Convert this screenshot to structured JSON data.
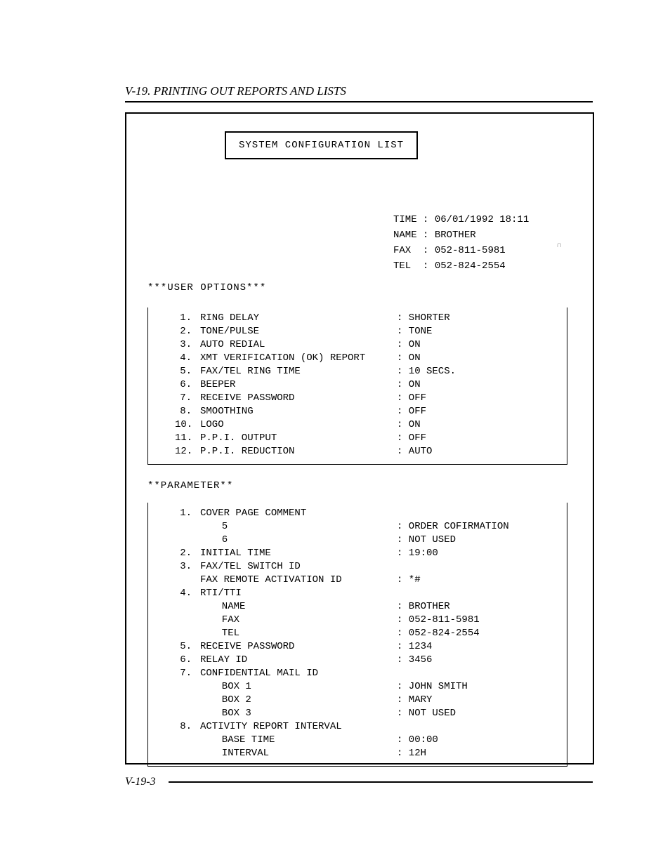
{
  "header": {
    "title": "V-19. PRINTING OUT REPORTS AND LISTS"
  },
  "report": {
    "title": "SYSTEM CONFIGURATION LIST",
    "meta": {
      "time_label": "TIME",
      "time_value": "06/01/1992 18:11",
      "name_label": "NAME",
      "name_value": "BROTHER",
      "fax_label": "FAX ",
      "fax_value": "052-811-5981",
      "tel_label": "TEL ",
      "tel_value": "052-824-2554"
    },
    "user_options": {
      "title": "***USER OPTIONS***",
      "rows": [
        {
          "num": "1.",
          "label": "RING DELAY",
          "value": ": SHORTER"
        },
        {
          "num": "2.",
          "label": "TONE/PULSE",
          "value": ": TONE"
        },
        {
          "num": "3.",
          "label": "AUTO REDIAL",
          "value": ": ON"
        },
        {
          "num": "4.",
          "label": "XMT VERIFICATION (OK) REPORT",
          "value": ": ON"
        },
        {
          "num": "5.",
          "label": "FAX/TEL RING TIME",
          "value": ": 10 SECS."
        },
        {
          "num": "6.",
          "label": "BEEPER",
          "value": ": ON"
        },
        {
          "num": "7.",
          "label": "RECEIVE PASSWORD",
          "value": ": OFF"
        },
        {
          "num": "8.",
          "label": "SMOOTHING",
          "value": ": OFF"
        },
        {
          "num": "10.",
          "label": "LOGO",
          "value": ": ON"
        },
        {
          "num": "11.",
          "label": "P.P.I. OUTPUT",
          "value": ": OFF"
        },
        {
          "num": "12.",
          "label": "P.P.I. REDUCTION",
          "value": ": AUTO"
        }
      ]
    },
    "parameter": {
      "title": "**PARAMETER**",
      "rows": [
        {
          "num": "1.",
          "label": "COVER PAGE COMMENT",
          "value": ""
        },
        {
          "sub": "  5",
          "value": ": ORDER COFIRMATION"
        },
        {
          "sub": "  6",
          "value": ": NOT USED"
        },
        {
          "num": "2.",
          "label": "INITIAL TIME",
          "value": ": 19:00"
        },
        {
          "num": "3.",
          "label": "FAX/TEL SWITCH ID",
          "value": ""
        },
        {
          "num": "",
          "label": "FAX REMOTE ACTIVATION ID",
          "value": ": *#"
        },
        {
          "num": "4.",
          "label": "RTI/TTI",
          "value": ""
        },
        {
          "sub": "  NAME",
          "value": ": BROTHER"
        },
        {
          "sub": "  FAX",
          "value": ": 052-811-5981"
        },
        {
          "sub": "  TEL",
          "value": ": 052-824-2554"
        },
        {
          "num": "5.",
          "label": "RECEIVE PASSWORD",
          "value": ": 1234"
        },
        {
          "num": "6.",
          "label": "RELAY ID",
          "value": ": 3456"
        },
        {
          "num": "7.",
          "label": "CONFIDENTIAL MAIL ID",
          "value": ""
        },
        {
          "sub": "  BOX 1",
          "value": ": JOHN SMITH"
        },
        {
          "sub": "  BOX 2",
          "value": ": MARY"
        },
        {
          "sub": "  BOX 3",
          "value": ": NOT USED"
        },
        {
          "num": "8.",
          "label": "ACTIVITY REPORT INTERVAL",
          "value": ""
        },
        {
          "sub": "  BASE TIME",
          "value": ": 00:00"
        },
        {
          "sub": "  INTERVAL",
          "value": ": 12H"
        }
      ]
    }
  },
  "footer": {
    "page": "V-19-3"
  }
}
